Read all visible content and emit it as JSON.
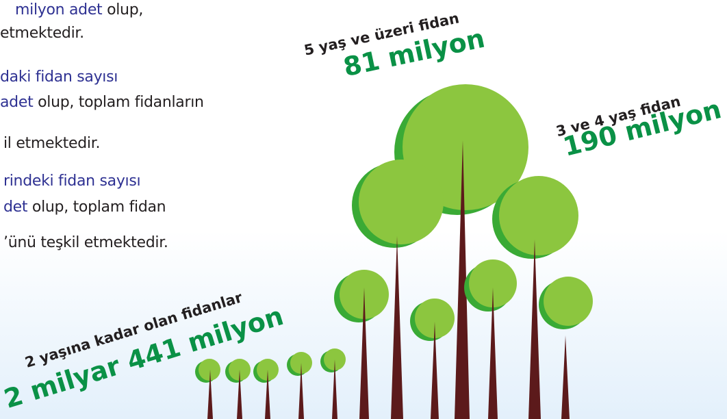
{
  "text_lines": [
    [
      {
        "text": "milyon adet",
        "color": "#2e3192"
      },
      {
        "text": " olup,",
        "color": "#231f20"
      }
    ],
    [
      {
        "text": "etmektedir.",
        "color": "#231f20"
      }
    ],
    [
      {
        "text": "daki fidan sayısı",
        "color": "#2e3192"
      }
    ],
    [
      {
        "text": "adet",
        "color": "#2e3192"
      },
      {
        "text": " olup, toplam fidanların",
        "color": "#231f20"
      }
    ],
    [
      {
        "text": "il etmektedir.",
        "color": "#231f20"
      }
    ],
    [
      {
        "text": "rindeki fidan sayısı",
        "color": "#2e3192"
      }
    ],
    [
      {
        "text": "det",
        "color": "#2e3192"
      },
      {
        "text": " olup, toplam fidan",
        "color": "#231f20"
      }
    ],
    [
      {
        "text": "’ünü teşkil etmektedir.",
        "color": "#231f20"
      }
    ]
  ],
  "labels": [
    {
      "caption": "5 yaş ve üzeri fidan",
      "amount": "81 milyon"
    },
    {
      "caption": "3 ve 4 yaş fidan",
      "amount": "190 milyon"
    },
    {
      "caption": "2 yaşına kadar olan fidanlar",
      "amount": "2 milyar 441 milyon"
    }
  ]
}
